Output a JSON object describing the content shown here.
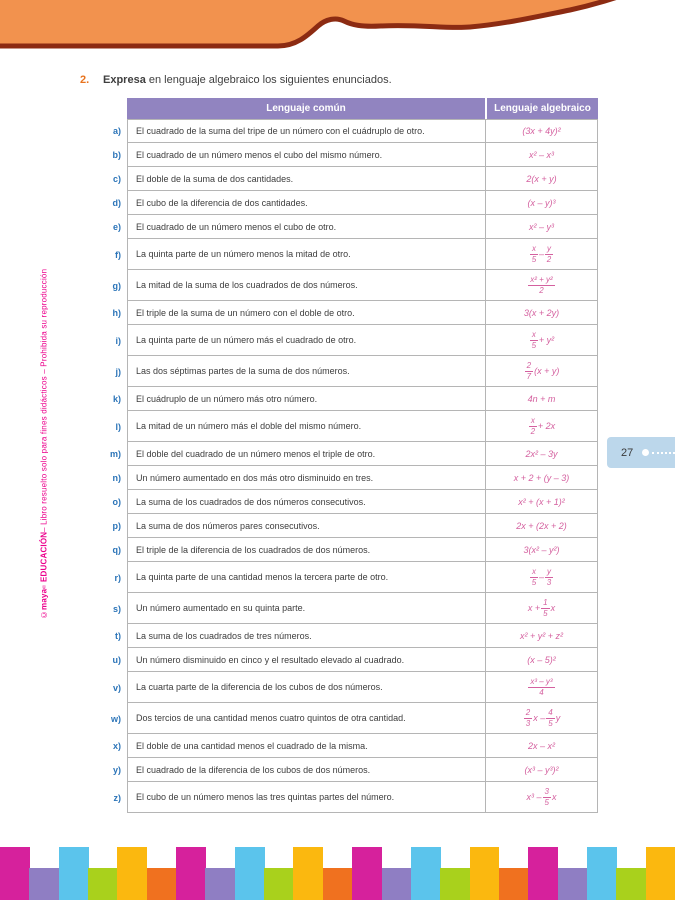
{
  "exercise": {
    "number": "2.",
    "title": "Expresa",
    "prompt": " en lenguaje algebraico los siguientes enunciados."
  },
  "page": {
    "page_number": "27"
  },
  "sidebar": {
    "copyright": "©",
    "brand": "maya",
    "reg": "®",
    "brand_suffix": "EDUCACIÓN",
    "note": " – Libro resuelto solo para fines didácticos – Prohibida su reproducción"
  },
  "table": {
    "headers": [
      "Lenguaje común",
      "Lenguaje algebraico"
    ],
    "rows": [
      {
        "label": "a)",
        "common": "El cuadrado de la suma del tripe de un número con el cuádruplo de otro.",
        "algebraic": "(3x + 4y)²"
      },
      {
        "label": "b)",
        "common": "El cuadrado de un número menos el cubo del mismo número.",
        "algebraic": "x² – x³"
      },
      {
        "label": "c)",
        "common": "El doble de la suma de dos cantidades.",
        "algebraic": "2(x + y)"
      },
      {
        "label": "d)",
        "common": "El cubo de la diferencia de dos cantidades.",
        "algebraic": "(x – y)³"
      },
      {
        "label": "e)",
        "common": "El cuadrado de un número menos el cubo de otro.",
        "algebraic": "x² – y³"
      },
      {
        "label": "f)",
        "common": "La quinta parte de un número menos la mitad de otro.",
        "algebraic": "{x/5} – {y/2}"
      },
      {
        "label": "g)",
        "common": "La mitad de la suma de los cuadrados de dos números.",
        "algebraic": "{x² + y²/2}"
      },
      {
        "label": "h)",
        "common": "El triple de la suma de un número con el doble de otro.",
        "algebraic": "3(x + 2y)"
      },
      {
        "label": "i)",
        "common": "La quinta parte de un número más el cuadrado de otro.",
        "algebraic": "{x/5} + y²"
      },
      {
        "label": "j)",
        "common": "Las dos séptimas partes de la suma de dos números.",
        "algebraic": "{2/7}(x + y)"
      },
      {
        "label": "k)",
        "common": "El cuádruplo de un número más otro número.",
        "algebraic": "4n + m"
      },
      {
        "label": "l)",
        "common": "La mitad de un número más el doble del mismo número.",
        "algebraic": "{x/2} + 2x"
      },
      {
        "label": "m)",
        "common": "El doble del cuadrado de un número menos el triple de otro.",
        "algebraic": "2x² – 3y"
      },
      {
        "label": "n)",
        "common": "Un número aumentado en dos más otro disminuido en tres.",
        "algebraic": "x + 2 + (y – 3)"
      },
      {
        "label": "o)",
        "common": "La suma de los cuadrados de dos números consecutivos.",
        "algebraic": "x² + (x + 1)²"
      },
      {
        "label": "p)",
        "common": "La suma de dos números pares consecutivos.",
        "algebraic": "2x + (2x + 2)"
      },
      {
        "label": "q)",
        "common": "El triple de la diferencia de los cuadrados de dos números.",
        "algebraic": "3(x² – y²)"
      },
      {
        "label": "r)",
        "common": "La quinta parte de una cantidad menos la tercera parte de otro.",
        "algebraic": "{x/5} – {y/3}"
      },
      {
        "label": "s)",
        "common": "Un número aumentado en su quinta parte.",
        "algebraic": "x + {1/5}x"
      },
      {
        "label": "t)",
        "common": "La suma de los cuadrados de tres números.",
        "algebraic": "x² + y² + z²"
      },
      {
        "label": "u)",
        "common": "Un número disminuido en cinco y el resultado elevado al cuadrado.",
        "algebraic": "(x – 5)²"
      },
      {
        "label": "v)",
        "common": "La cuarta parte de la diferencia de los cubos de dos números.",
        "algebraic": "{x³ – y³/4}"
      },
      {
        "label": "w)",
        "common": "Dos tercios de una cantidad menos cuatro quintos de otra cantidad.",
        "algebraic": "{2/3}x – {4/5}y"
      },
      {
        "label": "x)",
        "common": "El doble de una cantidad menos el cuadrado de la misma.",
        "algebraic": "2x – x²"
      },
      {
        "label": "y)",
        "common": "El cuadrado de la diferencia de los cubos de dos números.",
        "algebraic": "(x³ – y³)²"
      },
      {
        "label": "z)",
        "common": "El cubo de un número menos las tres quintas partes del número.",
        "algebraic": "x³ – {3/5}x"
      }
    ]
  },
  "colors": {
    "wave_fill": "#f2924e",
    "wave_edge": "#8c2b12",
    "header_purple": "#9184c0",
    "expression_pink": "#d4609f",
    "label_blue": "#2b74b8",
    "sidebar_pink": "#ec008c",
    "badge_blue": "#bcd7eb",
    "exercise_orange": "#e8731e"
  },
  "footer": {
    "bar_colors": [
      "#d6219c",
      "#8f7ec3",
      "#5bc4ec",
      "#a9d11c",
      "#fbb80f",
      "#f0711f"
    ],
    "bar_count": 23,
    "tall_height": 53,
    "short_height": 32
  }
}
